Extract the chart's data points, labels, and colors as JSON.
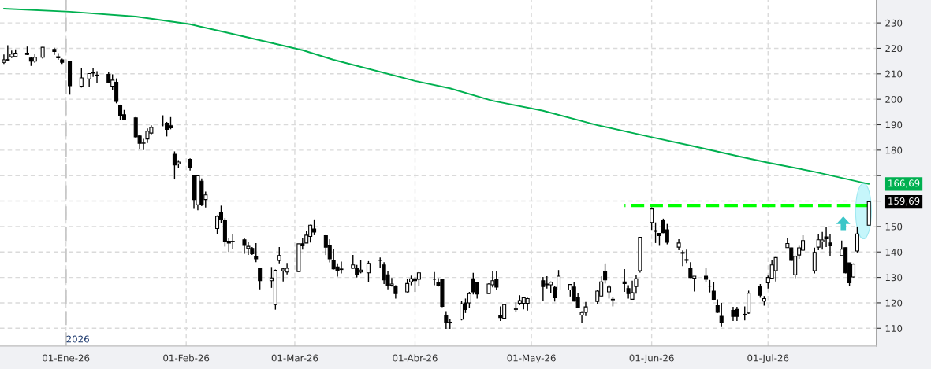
{
  "chart_data": {
    "type": "candlestick",
    "x": [
      "2025-12-16",
      "2025-12-17",
      "2025-12-18",
      "2025-12-19",
      "2025-12-22",
      "2025-12-23",
      "2025-12-24",
      "2025-12-26",
      "2025-12-29",
      "2025-12-30",
      "2025-12-31",
      "2026-01-02",
      "2026-01-05",
      "2026-01-07",
      "2026-01-08",
      "2026-01-09",
      "2026-01-12",
      "2026-01-13",
      "2026-01-14",
      "2026-01-15",
      "2026-01-16",
      "2026-01-19",
      "2026-01-20",
      "2026-01-21",
      "2026-01-22",
      "2026-01-23",
      "2026-01-26",
      "2026-01-27",
      "2026-01-28",
      "2026-01-29",
      "2026-01-30",
      "2026-02-02",
      "2026-02-03",
      "2026-02-04",
      "2026-02-05",
      "2026-02-06",
      "2026-02-09",
      "2026-02-10",
      "2026-02-11",
      "2026-02-12",
      "2026-02-13",
      "2026-02-16",
      "2026-02-17",
      "2026-02-18",
      "2026-02-19",
      "2026-02-20",
      "2026-02-23",
      "2026-02-24",
      "2026-02-25",
      "2026-02-26",
      "2026-02-27",
      "2026-03-02",
      "2026-03-03",
      "2026-03-04",
      "2026-03-05",
      "2026-03-06",
      "2026-03-09",
      "2026-03-10",
      "2026-03-11",
      "2026-03-12",
      "2026-03-13",
      "2026-03-16",
      "2026-03-17",
      "2026-03-18",
      "2026-03-20",
      "2026-03-23",
      "2026-03-24",
      "2026-03-25",
      "2026-03-26",
      "2026-03-27",
      "2026-03-30",
      "2026-03-31",
      "2026-04-01",
      "2026-04-02",
      "2026-04-06",
      "2026-04-07",
      "2026-04-08",
      "2026-04-09",
      "2026-04-10",
      "2026-04-13",
      "2026-04-14",
      "2026-04-15",
      "2026-04-16",
      "2026-04-17",
      "2026-04-20",
      "2026-04-21",
      "2026-04-22",
      "2026-04-23",
      "2026-04-24",
      "2026-04-27",
      "2026-04-28",
      "2026-04-29",
      "2026-04-30",
      "2026-05-04",
      "2026-05-05",
      "2026-05-06",
      "2026-05-07",
      "2026-05-08",
      "2026-05-11",
      "2026-05-12",
      "2026-05-13",
      "2026-05-14",
      "2026-05-15",
      "2026-05-18",
      "2026-05-19",
      "2026-05-20",
      "2026-05-21",
      "2026-05-22",
      "2026-05-25",
      "2026-05-26",
      "2026-05-27",
      "2026-05-28",
      "2026-05-29",
      "2026-06-01",
      "2026-06-02",
      "2026-06-03",
      "2026-06-04",
      "2026-06-05",
      "2026-06-08",
      "2026-06-09",
      "2026-06-10",
      "2026-06-11",
      "2026-06-12",
      "2026-06-15",
      "2026-06-16",
      "2026-06-17",
      "2026-06-18",
      "2026-06-19",
      "2026-06-22",
      "2026-06-23",
      "2026-06-25",
      "2026-06-26",
      "2026-06-29",
      "2026-06-30",
      "2026-07-01",
      "2026-07-02",
      "2026-07-03",
      "2026-07-06",
      "2026-07-07",
      "2026-07-08",
      "2026-07-09",
      "2026-07-10",
      "2026-07-13",
      "2026-07-14",
      "2026-07-15",
      "2026-07-16",
      "2026-07-17",
      "2026-07-20",
      "2026-07-21",
      "2026-07-22",
      "2026-07-23",
      "2026-07-24",
      "2026-07-27"
    ],
    "ohlc": [
      [
        214.5,
        217.6,
        213.9,
        215.5
      ],
      [
        215.4,
        221.2,
        215.2,
        215.6
      ],
      [
        216.7,
        219.1,
        216.2,
        217.8
      ],
      [
        216.8,
        219.6,
        216.5,
        218.1
      ],
      [
        218.1,
        220.7,
        217.4,
        217.6
      ],
      [
        216.2,
        216.7,
        213.1,
        215.0
      ],
      [
        215.0,
        217.8,
        214.3,
        216.5
      ],
      [
        216.5,
        220.5,
        216.0,
        220.4
      ],
      [
        219.6,
        220.2,
        217.4,
        218.8
      ],
      [
        216.7,
        218.1,
        215.5,
        216.3
      ],
      [
        215.5,
        216.0,
        213.9,
        214.5
      ],
      [
        214.7,
        215.0,
        201.8,
        205.3
      ],
      [
        205.1,
        212.2,
        204.6,
        208.4
      ],
      [
        208.0,
        210.1,
        204.9,
        210.1
      ],
      [
        210.5,
        212.4,
        208.8,
        210.3
      ],
      [
        209.3,
        211.0,
        206.5,
        209.5
      ],
      [
        209.8,
        210.7,
        206.4,
        206.6
      ],
      [
        205.1,
        209.8,
        203.6,
        207.5
      ],
      [
        206.7,
        208.2,
        198.4,
        199.1
      ],
      [
        197.7,
        197.9,
        191.9,
        193.5
      ],
      [
        193.9,
        195.8,
        191.9,
        192.2
      ],
      [
        192.7,
        193.0,
        184.9,
        185.2
      ],
      [
        185.6,
        185.8,
        180.3,
        182.7
      ],
      [
        182.7,
        184.4,
        180.0,
        182.8
      ],
      [
        184.4,
        188.5,
        182.8,
        187.5
      ],
      [
        186.7,
        189.8,
        186.2,
        188.9
      ],
      [
        190.3,
        193.7,
        189.4,
        190.3
      ],
      [
        190.6,
        191.1,
        185.4,
        188.2
      ],
      [
        189.6,
        193.0,
        188.2,
        188.8
      ],
      [
        178.4,
        179.5,
        168.5,
        174.2
      ],
      [
        174.6,
        176.1,
        173.0,
        175.3
      ],
      [
        176.4,
        176.8,
        172.0,
        173.0
      ],
      [
        169.9,
        169.9,
        156.9,
        160.6
      ],
      [
        158.5,
        169.9,
        156.4,
        169.9
      ],
      [
        167.8,
        168.9,
        158.0,
        158.5
      ],
      [
        160.6,
        163.7,
        157.5,
        162.4
      ],
      [
        149.2,
        154.4,
        147.1,
        154.0
      ],
      [
        155.6,
        158.2,
        151.5,
        152.8
      ],
      [
        152.5,
        153.3,
        142.1,
        144.2
      ],
      [
        144.2,
        145.5,
        140.0,
        143.5
      ],
      [
        144.0,
        147.1,
        141.2,
        144.2
      ],
      [
        144.8,
        145.5,
        139.3,
        142.6
      ],
      [
        141.4,
        144.0,
        138.8,
        142.2
      ],
      [
        141.4,
        141.9,
        138.8,
        139.3
      ],
      [
        138.3,
        143.5,
        136.0,
        137.3
      ],
      [
        133.6,
        133.8,
        125.3,
        128.7
      ],
      [
        128.7,
        134.1,
        125.9,
        129.8
      ],
      [
        119.3,
        133.1,
        117.3,
        132.8
      ],
      [
        136.7,
        141.9,
        135.5,
        138.6
      ],
      [
        132.6,
        133.6,
        128.4,
        133.3
      ],
      [
        132.1,
        135.7,
        131.2,
        133.6
      ],
      [
        132.3,
        143.2,
        132.3,
        143.2
      ],
      [
        143.2,
        145.5,
        140.9,
        142.4
      ],
      [
        143.5,
        148.4,
        143.5,
        146.6
      ],
      [
        146.1,
        150.7,
        143.7,
        150.5
      ],
      [
        149.0,
        152.8,
        146.6,
        147.8
      ],
      [
        146.4,
        146.6,
        138.8,
        141.9
      ],
      [
        142.4,
        145.0,
        135.9,
        137.3
      ],
      [
        136.7,
        141.1,
        133.1,
        133.4
      ],
      [
        134.1,
        135.5,
        130.3,
        132.6
      ],
      [
        133.1,
        136.2,
        131.6,
        133.3
      ],
      [
        133.6,
        138.8,
        133.4,
        134.9
      ],
      [
        133.6,
        134.9,
        130.0,
        131.3
      ],
      [
        132.1,
        136.7,
        131.6,
        132.9
      ],
      [
        131.8,
        136.4,
        128.1,
        135.5
      ],
      [
        136.7,
        137.8,
        133.6,
        136.7
      ],
      [
        134.9,
        136.0,
        127.4,
        129.0
      ],
      [
        131.0,
        132.6,
        125.3,
        126.7
      ],
      [
        126.9,
        129.8,
        126.4,
        127.4
      ],
      [
        126.6,
        126.9,
        121.7,
        123.6
      ],
      [
        124.3,
        129.5,
        124.1,
        127.6
      ],
      [
        128.2,
        130.7,
        126.9,
        129.5
      ],
      [
        129.5,
        130.0,
        124.3,
        128.7
      ],
      [
        129.3,
        132.1,
        126.6,
        131.8
      ],
      [
        129.3,
        132.1,
        126.9,
        129.3
      ],
      [
        127.9,
        129.7,
        126.4,
        126.9
      ],
      [
        129.3,
        129.5,
        118.3,
        118.6
      ],
      [
        115.2,
        116.7,
        109.8,
        112.4
      ],
      [
        112.4,
        113.6,
        109.8,
        112.1
      ],
      [
        113.6,
        120.9,
        113.1,
        119.6
      ],
      [
        120.0,
        121.7,
        116.0,
        117.4
      ],
      [
        120.0,
        124.3,
        117.9,
        123.6
      ],
      [
        129.5,
        131.8,
        123.3,
        124.3
      ],
      [
        127.9,
        128.2,
        121.7,
        123.5
      ],
      [
        123.6,
        127.7,
        123.6,
        127.4
      ],
      [
        127.1,
        132.6,
        126.1,
        128.7
      ],
      [
        129.3,
        132.4,
        125.1,
        126.2
      ],
      [
        115.0,
        118.6,
        112.9,
        114.2
      ],
      [
        113.9,
        119.3,
        113.9,
        119.3
      ],
      [
        117.4,
        120.2,
        116.3,
        117.6
      ],
      [
        119.8,
        123.0,
        119.1,
        120.9
      ],
      [
        119.8,
        122.0,
        117.4,
        122.0
      ],
      [
        119.8,
        122.0,
        117.0,
        121.7
      ],
      [
        128.7,
        130.2,
        120.7,
        126.4
      ],
      [
        127.1,
        130.5,
        125.6,
        127.4
      ],
      [
        127.1,
        128.4,
        123.8,
        128.1
      ],
      [
        126.1,
        126.7,
        120.5,
        122.0
      ],
      [
        125.1,
        132.9,
        125.1,
        130.5
      ],
      [
        125.1,
        127.4,
        122.5,
        127.2
      ],
      [
        126.2,
        128.2,
        120.5,
        120.7
      ],
      [
        122.0,
        123.8,
        117.9,
        118.3
      ],
      [
        115.2,
        116.7,
        112.1,
        116.2
      ],
      [
        116.3,
        120.4,
        114.8,
        118.4
      ],
      [
        120.5,
        125.1,
        119.4,
        124.6
      ],
      [
        122.7,
        130.5,
        122.5,
        128.2
      ],
      [
        132.3,
        135.5,
        127.6,
        129.0
      ],
      [
        124.3,
        127.1,
        121.7,
        126.2
      ],
      [
        121.2,
        122.4,
        118.6,
        121.4
      ],
      [
        128.2,
        133.3,
        124.3,
        127.6
      ],
      [
        125.6,
        126.9,
        121.7,
        123.6
      ],
      [
        121.4,
        128.7,
        121.2,
        124.0
      ],
      [
        126.4,
        131.0,
        123.6,
        129.5
      ],
      [
        132.6,
        145.9,
        131.9,
        145.8
      ],
      [
        151.6,
        157.5,
        148.7,
        156.9
      ],
      [
        148.1,
        151.6,
        143.5,
        148.4
      ],
      [
        147.3,
        147.4,
        142.4,
        146.4
      ],
      [
        152.3,
        153.1,
        147.4,
        147.6
      ],
      [
        148.7,
        151.0,
        143.0,
        143.8
      ],
      [
        141.9,
        145.0,
        140.7,
        143.5
      ],
      [
        139.5,
        140.6,
        134.4,
        139.8
      ],
      [
        136.7,
        140.9,
        135.7,
        137.0
      ],
      [
        133.6,
        136.0,
        129.8,
        130.0
      ],
      [
        129.7,
        130.5,
        124.5,
        130.5
      ],
      [
        130.5,
        133.6,
        128.1,
        129.3
      ],
      [
        126.6,
        129.0,
        124.1,
        126.6
      ],
      [
        124.6,
        128.2,
        121.2,
        121.4
      ],
      [
        118.9,
        121.4,
        116.0,
        116.3
      ],
      [
        114.7,
        120.0,
        110.8,
        112.4
      ],
      [
        117.0,
        118.4,
        112.9,
        114.7
      ],
      [
        117.4,
        118.4,
        112.9,
        114.7
      ],
      [
        115.3,
        118.6,
        113.1,
        115.5
      ],
      [
        116.0,
        124.8,
        115.7,
        123.8
      ],
      [
        126.4,
        127.4,
        122.0,
        123.0
      ],
      [
        120.7,
        122.7,
        118.9,
        121.7
      ],
      [
        127.9,
        130.7,
        125.6,
        130.0
      ],
      [
        129.7,
        136.7,
        129.5,
        134.9
      ],
      [
        132.6,
        138.0,
        128.4,
        137.8
      ],
      [
        141.7,
        145.3,
        141.6,
        143.3
      ],
      [
        141.6,
        141.7,
        136.5,
        136.7
      ],
      [
        131.0,
        138.6,
        129.7,
        138.3
      ],
      [
        138.8,
        142.4,
        137.3,
        141.6
      ],
      [
        140.7,
        146.6,
        140.4,
        144.5
      ],
      [
        132.6,
        141.7,
        131.6,
        139.8
      ],
      [
        141.9,
        147.1,
        140.7,
        144.8
      ],
      [
        144.0,
        147.9,
        140.9,
        144.7
      ],
      [
        145.9,
        149.7,
        141.9,
        145.2
      ],
      [
        143.5,
        147.1,
        138.3,
        142.4
      ],
      [
        138.6,
        144.5,
        138.3,
        141.1
      ],
      [
        141.7,
        141.7,
        131.6,
        131.8
      ],
      [
        135.7,
        135.7,
        126.6,
        127.9
      ],
      [
        130.2,
        135.5,
        130.0,
        135.2
      ],
      [
        140.4,
        150.0,
        139.8,
        147.1
      ],
      [
        150.5,
        159.7,
        150.5,
        159.69
      ]
    ],
    "series": [
      {
        "type": "line",
        "color": "#00b050",
        "x": [
          "2025-12-16",
          "2026-01-02",
          "2026-01-19",
          "2026-02-02",
          "2026-02-12",
          "2026-03-03",
          "2026-03-11",
          "2026-04-01",
          "2026-04-10",
          "2026-04-21",
          "2026-05-04",
          "2026-05-18",
          "2026-06-01",
          "2026-06-11",
          "2026-06-23",
          "2026-07-01",
          "2026-07-13",
          "2026-07-27"
        ],
        "values": [
          235.6,
          234.4,
          232.5,
          229.5,
          226,
          219.3,
          215.5,
          207.2,
          204.3,
          199.4,
          195.5,
          189.8,
          185.1,
          181.8,
          177.7,
          175.1,
          171.5,
          166.7
        ]
      },
      {
        "type": "line",
        "color": "#00ff00",
        "line_style": "dashed",
        "x": [
          "2026-07-27",
          "2026-05-25"
        ],
        "values": [
          158.3,
          158.3
        ]
      }
    ],
    "xlim": [
      "2025-12-15",
      "2026-07-29"
    ],
    "xticks": [
      {
        "value": "2026-01-01",
        "label": "01-Ene-26"
      },
      {
        "value": "2026-02-01",
        "label": "01-Feb-26"
      },
      {
        "value": "2026-03-01",
        "label": "01-Mar-26"
      },
      {
        "value": "2026-04-01",
        "label": "01-Abr-26"
      },
      {
        "value": "2026-05-01",
        "label": "01-May-26"
      },
      {
        "value": "2026-06-01",
        "label": "01-Jun-26"
      },
      {
        "value": "2026-07-01",
        "label": "01-Jul-26"
      }
    ],
    "ylim": [
      103,
      239
    ],
    "yticks": [
      110,
      120,
      130,
      140,
      150,
      {
        "value": 160,
        "label": null
      },
      {
        "value": 170,
        "label": null
      },
      180,
      190,
      200,
      210,
      220,
      230
    ],
    "grid": true,
    "ref_lines": [
      {
        "axis": "x",
        "value": "2026-01-01",
        "label": "2026",
        "color": "#c8c8c8",
        "line_style": "dashed"
      }
    ],
    "annotations": [
      "166,69",
      "159,69"
    ]
  }
}
